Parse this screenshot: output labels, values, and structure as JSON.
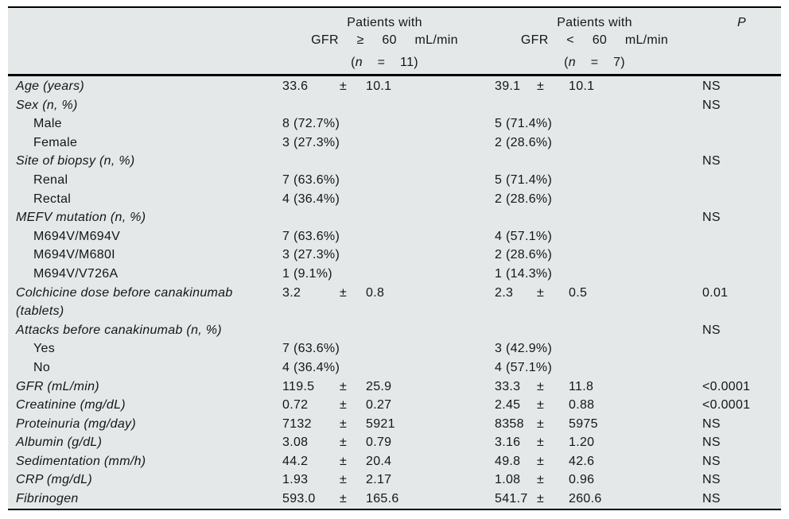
{
  "sym": {
    "plus_minus": "±"
  },
  "header": {
    "group1": {
      "line1": "Patients with",
      "line2": "GFR ≥ 60 mL/min",
      "open": "(",
      "n": "n",
      "rest": "= 11)"
    },
    "group2": {
      "line1": "Patients with",
      "line2": "GFR < 60 mL/min",
      "open": "(",
      "n": "n",
      "rest": "= 7)"
    },
    "p_label": "P"
  },
  "rows": [
    {
      "label": "Age (years)",
      "v1": {
        "m": "33.6",
        "sd": "10.1"
      },
      "v2": {
        "m": "39.1",
        "sd": "10.1"
      },
      "p": "NS"
    },
    {
      "label": "Sex (n, %)",
      "p": "NS"
    },
    {
      "label": "Male",
      "v1": "8 (72.7%)",
      "v2": "5 (71.4%)"
    },
    {
      "label": "Female",
      "v1": "3 (27.3%)",
      "v2": "2 (28.6%)"
    },
    {
      "label": "Site of biopsy (n, %)",
      "p": "NS"
    },
    {
      "label": "Renal",
      "v1": "7 (63.6%)",
      "v2": "5 (71.4%)"
    },
    {
      "label": "Rectal",
      "v1": "4 (36.4%)",
      "v2": "2 (28.6%)"
    },
    {
      "label": "MEFV mutation (n, %)",
      "p": "NS"
    },
    {
      "label": "M694V/M694V",
      "v1": "7 (63.6%)",
      "v2": "4 (57.1%)"
    },
    {
      "label": "M694V/M680I",
      "v1": "3 (27.3%)",
      "v2": "2 (28.6%)"
    },
    {
      "label": "M694V/V726A",
      "v1": "1 (9.1%)",
      "v2": "1 (14.3%)"
    },
    {
      "label": "Colchicine dose before canakinumab",
      "label2": "(tablets)",
      "v1": {
        "m": "3.2",
        "sd": "0.8"
      },
      "v2": {
        "m": "2.3",
        "sd": "0.5"
      },
      "p": "0.01"
    },
    {
      "label": "Attacks before canakinumab (n, %)",
      "p": "NS"
    },
    {
      "label": "Yes",
      "v1": "7 (63.6%)",
      "v2": "3 (42.9%)"
    },
    {
      "label": "No",
      "v1": "4 (36.4%)",
      "v2": "4 (57.1%)"
    },
    {
      "label": "GFR (mL/min)",
      "v1": {
        "m": "119.5",
        "sd": "25.9"
      },
      "v2": {
        "m": "33.3",
        "sd": "11.8"
      },
      "p": "<0.0001"
    },
    {
      "label": "Creatinine (mg/dL)",
      "v1": {
        "m": "0.72",
        "sd": "0.27"
      },
      "v2": {
        "m": "2.45",
        "sd": "0.88"
      },
      "p": "<0.0001"
    },
    {
      "label": "Proteinuria (mg/day)",
      "v1": {
        "m": "7132",
        "sd": "5921"
      },
      "v2": {
        "m": "8358",
        "sd": "5975"
      },
      "p": "NS"
    },
    {
      "label": "Albumin (g/dL)",
      "v1": {
        "m": "3.08",
        "sd": "0.79"
      },
      "v2": {
        "m": "3.16",
        "sd": "1.20"
      },
      "p": "NS"
    },
    {
      "label": "Sedimentation (mm/h)",
      "v1": {
        "m": "44.2",
        "sd": "20.4"
      },
      "v2": {
        "m": "49.8",
        "sd": "42.6"
      },
      "p": "NS"
    },
    {
      "label": "CRP (mg/dL)",
      "v1": {
        "m": "1.93",
        "sd": "2.17"
      },
      "v2": {
        "m": "1.08",
        "sd": "0.96"
      },
      "p": "NS"
    },
    {
      "label": "Fibrinogen",
      "v1": {
        "m": "593.0",
        "sd": "165.6"
      },
      "v2": {
        "m": "541.7",
        "sd": "260.6"
      },
      "p": "NS"
    }
  ]
}
